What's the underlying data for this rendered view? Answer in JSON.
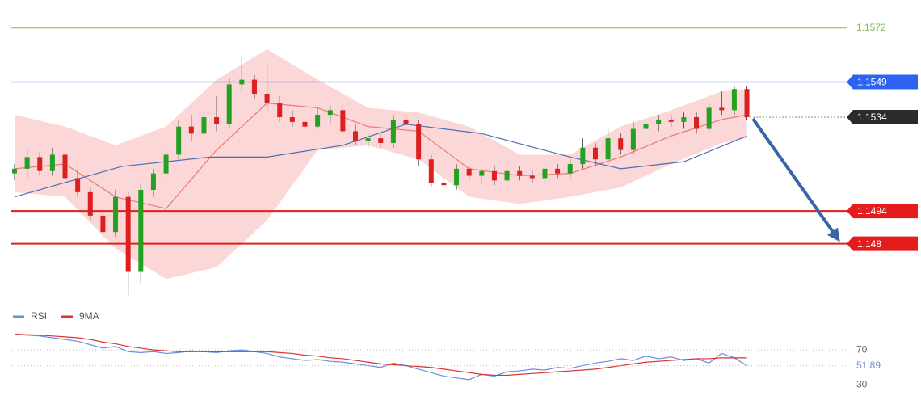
{
  "chart_data": [
    {
      "type": "candlestick",
      "open": [
        1.151,
        1.1512,
        1.1517,
        1.1511,
        1.1518,
        1.1508,
        1.1502,
        1.1492,
        1.1485,
        1.15,
        1.1468,
        1.1503,
        1.151,
        1.1518,
        1.153,
        1.1527,
        1.1534,
        1.1531,
        1.1548,
        1.155,
        1.1544,
        1.154,
        1.1534,
        1.1532,
        1.153,
        1.1535,
        1.1537,
        1.1528,
        1.1524,
        1.1525,
        1.1523,
        1.1533,
        1.1531,
        1.1516,
        1.1506,
        1.1505,
        1.1512,
        1.1509,
        1.1511,
        1.1507,
        1.1511,
        1.1509,
        1.1508,
        1.1512,
        1.151,
        1.1514,
        1.1521,
        1.1516,
        1.1525,
        1.152,
        1.1529,
        1.1531,
        1.1533,
        1.1532,
        1.1534,
        1.1529,
        1.1538,
        1.1537,
        1.1546
      ],
      "high": [
        1.1514,
        1.152,
        1.1519,
        1.1521,
        1.152,
        1.1511,
        1.1504,
        1.1494,
        1.1503,
        1.1502,
        1.1506,
        1.1512,
        1.152,
        1.1533,
        1.1535,
        1.1537,
        1.1543,
        1.1551,
        1.156,
        1.1552,
        1.1556,
        1.1543,
        1.1537,
        1.1535,
        1.1538,
        1.1539,
        1.1539,
        1.1531,
        1.1527,
        1.1527,
        1.1535,
        1.1535,
        1.1533,
        1.1518,
        1.1509,
        1.1514,
        1.1513,
        1.1512,
        1.1513,
        1.1513,
        1.1513,
        1.1511,
        1.1514,
        1.1514,
        1.1516,
        1.1525,
        1.1523,
        1.1529,
        1.1527,
        1.1532,
        1.1534,
        1.1535,
        1.1535,
        1.1536,
        1.1536,
        1.154,
        1.1545,
        1.1547,
        1.1547
      ],
      "low": [
        1.1507,
        1.1508,
        1.1509,
        1.1509,
        1.1506,
        1.15,
        1.149,
        1.1482,
        1.1483,
        1.1458,
        1.1463,
        1.15,
        1.1508,
        1.1516,
        1.1524,
        1.1525,
        1.1528,
        1.1529,
        1.1545,
        1.1542,
        1.1536,
        1.1532,
        1.153,
        1.1528,
        1.1529,
        1.1531,
        1.1527,
        1.1522,
        1.1521,
        1.1521,
        1.1521,
        1.1529,
        1.1513,
        1.1504,
        1.1503,
        1.1503,
        1.1507,
        1.1506,
        1.1505,
        1.1506,
        1.1507,
        1.1506,
        1.1506,
        1.1508,
        1.1508,
        1.1512,
        1.1513,
        1.1514,
        1.1518,
        1.1518,
        1.1525,
        1.1528,
        1.153,
        1.1529,
        1.1527,
        1.1527,
        1.1535,
        1.1535,
        1.1533
      ],
      "close": [
        1.1512,
        1.1517,
        1.1511,
        1.1518,
        1.1508,
        1.1502,
        1.1492,
        1.1485,
        1.15,
        1.1468,
        1.1503,
        1.151,
        1.1518,
        1.153,
        1.1527,
        1.1534,
        1.1531,
        1.1548,
        1.155,
        1.1544,
        1.154,
        1.1534,
        1.1532,
        1.153,
        1.1535,
        1.1537,
        1.1528,
        1.1524,
        1.1525,
        1.1523,
        1.1533,
        1.1531,
        1.1516,
        1.1506,
        1.1505,
        1.1512,
        1.1509,
        1.1511,
        1.1507,
        1.1511,
        1.1509,
        1.1508,
        1.1512,
        1.151,
        1.1514,
        1.1521,
        1.1516,
        1.1525,
        1.152,
        1.1529,
        1.1531,
        1.1533,
        1.1532,
        1.1534,
        1.1529,
        1.1538,
        1.1537,
        1.1546,
        1.1534
      ],
      "up_color": "#23a123",
      "down_color": "#dc1f1f",
      "ylim": [
        1.1453,
        1.1584
      ],
      "band": {
        "color": "#f9c9c9",
        "x": [
          0,
          4,
          8,
          12,
          16,
          20,
          24,
          28,
          32,
          36,
          40,
          44,
          48,
          52,
          56,
          58
        ],
        "upper": [
          1.1535,
          1.153,
          1.1522,
          1.153,
          1.155,
          1.1563,
          1.155,
          1.1538,
          1.1536,
          1.153,
          1.1518,
          1.1518,
          1.153,
          1.1537,
          1.1545,
          1.1546
        ],
        "lower": [
          1.1502,
          1.15,
          1.1478,
          1.1465,
          1.147,
          1.149,
          1.152,
          1.1522,
          1.1516,
          1.15,
          1.1497,
          1.15,
          1.1504,
          1.1514,
          1.1523,
          1.1525
        ]
      },
      "lines": [
        {
          "color": "#e87b7b",
          "x": [
            0,
            4,
            8,
            12,
            16,
            20,
            24,
            28,
            32,
            36,
            40,
            44,
            48,
            52,
            56,
            58
          ],
          "values": [
            1.1512,
            1.1514,
            1.15,
            1.1495,
            1.152,
            1.154,
            1.1538,
            1.153,
            1.1528,
            1.1512,
            1.1509,
            1.151,
            1.1517,
            1.1526,
            1.1533,
            1.1535
          ]
        },
        {
          "color": "#4a6fb5",
          "x": [
            0,
            8.5,
            15.5,
            20,
            26,
            31,
            37,
            44,
            48,
            53,
            58
          ],
          "values": [
            1.15,
            1.1513,
            1.1517,
            1.1517,
            1.1522,
            1.1531,
            1.1527,
            1.1517,
            1.1512,
            1.1515,
            1.1526
          ]
        }
      ],
      "levels": [
        {
          "value": 1.1572,
          "color": "#86bd4f",
          "style": "plain"
        },
        {
          "value": 1.1549,
          "color": "#2d63f0",
          "style": "box"
        },
        {
          "value": 1.1534,
          "color": "#2b2b2b",
          "style": "dotted"
        },
        {
          "value": 1.1494,
          "color": "#e51c1c",
          "style": "box"
        },
        {
          "value": 1.148,
          "color": "#e51c1c",
          "style": "box"
        }
      ]
    },
    {
      "type": "line",
      "series": [
        {
          "name": "RSI",
          "color": "#6b8ee0",
          "values": [
            88,
            87,
            86,
            84,
            82,
            80,
            76,
            72,
            74,
            68,
            67,
            68,
            66,
            67,
            69,
            68,
            67,
            69,
            70,
            68,
            66,
            62,
            60,
            58,
            59,
            57,
            56,
            54,
            52,
            50,
            55,
            52,
            48,
            44,
            40,
            38,
            36,
            42,
            40,
            45,
            46,
            48,
            47,
            50,
            49,
            52,
            55,
            57,
            60,
            58,
            63,
            60,
            62,
            58,
            60,
            55,
            66,
            61,
            51.89
          ]
        },
        {
          "name": "9MA",
          "color": "#e03030",
          "values": [
            88,
            87.5,
            87,
            86,
            85,
            84,
            82,
            79,
            77,
            74,
            72,
            70,
            69,
            68,
            68,
            68,
            68,
            68,
            68,
            68,
            68,
            67,
            66,
            64,
            63,
            61,
            60,
            58,
            56,
            54,
            53,
            52,
            51,
            50,
            48,
            46,
            44,
            42,
            41,
            41,
            42,
            43,
            44,
            45,
            46,
            47,
            48,
            50,
            52,
            54,
            56,
            57,
            58,
            59,
            60,
            60,
            61,
            61,
            61
          ]
        }
      ],
      "ylim": [
        22,
        96
      ],
      "yticks": [
        70,
        30
      ]
    }
  ]
}
